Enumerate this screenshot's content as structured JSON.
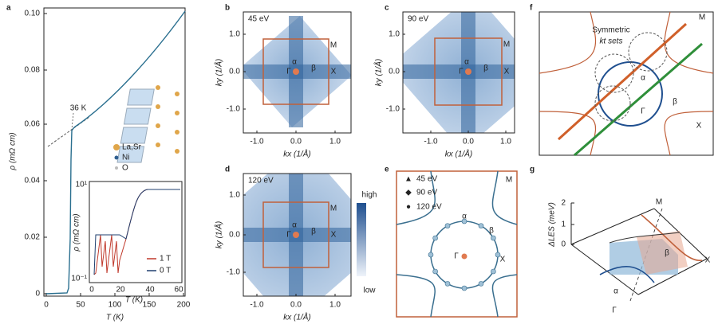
{
  "panels": {
    "a": {
      "label": "a",
      "y_axis": "ρ (mΩ cm)",
      "x_axis": "T (K)",
      "y_ticks": [
        "0",
        "0.02",
        "0.04",
        "0.06",
        "0.08",
        "0.10"
      ],
      "x_ticks": [
        "0",
        "50",
        "100",
        "150",
        "200"
      ],
      "annotation": "36 K",
      "legend": [
        "La,Sr",
        "Ni",
        "O"
      ],
      "inset": {
        "y_axis": "ρ (mΩ cm)",
        "x_axis": "T (K)",
        "y_ticks": [
          "10¹",
          "10⁻¹"
        ],
        "x_ticks": [
          "0",
          "20",
          "40",
          "60"
        ],
        "legend": [
          "1 T",
          "0 T"
        ]
      }
    },
    "b": {
      "label": "b",
      "energy": "45 eV",
      "y_axis": "ky (1/Å)",
      "x_axis": "kx (1/Å)",
      "y_ticks": [
        "1.0",
        "0.0",
        "-1.0"
      ],
      "x_ticks": [
        "-1.0",
        "0.0",
        "1.0"
      ],
      "symbols": [
        "M",
        "α",
        "β",
        "Γ",
        "X"
      ]
    },
    "c": {
      "label": "c",
      "energy": "90 eV",
      "y_axis": "ky (1/Å)",
      "x_axis": "kx (1/Å)",
      "y_ticks": [
        "1.0",
        "0.0",
        "-1.0"
      ],
      "x_ticks": [
        "-1.0",
        "0.0",
        "1.0"
      ],
      "symbols": [
        "M",
        "α",
        "β",
        "Γ",
        "X"
      ]
    },
    "d": {
      "label": "d",
      "energy": "120 eV",
      "y_axis": "ky (1/Å)",
      "x_axis": "kx (1/Å)",
      "y_ticks": [
        "1.0",
        "0.0",
        "-1.0"
      ],
      "x_ticks": [
        "-1.0",
        "0.0",
        "1.0"
      ],
      "symbols": [
        "M",
        "α",
        "β",
        "Γ",
        "X"
      ],
      "colorbar": [
        "high",
        "low"
      ]
    },
    "e": {
      "label": "e",
      "legend": [
        "45 eV",
        "90 eV",
        "120 eV"
      ],
      "symbols": [
        "M",
        "α",
        "β",
        "Γ",
        "X"
      ]
    },
    "f": {
      "label": "f",
      "note": [
        "Symmetric",
        "kt sets"
      ],
      "symbols": [
        "M",
        "α",
        "β",
        "Γ",
        "X"
      ]
    },
    "g": {
      "label": "g",
      "y_axis": "ΔLES (meV)",
      "y_ticks": [
        "2",
        "1",
        "0"
      ],
      "symbols": [
        "M",
        "X",
        "Γ",
        "β",
        "α"
      ]
    }
  }
}
